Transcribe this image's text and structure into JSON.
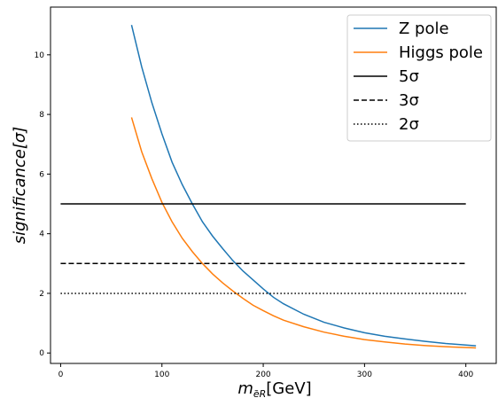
{
  "chart_data": {
    "type": "line",
    "xlabel_base": "m",
    "xlabel_subscript": "ẽR",
    "xlabel_unit": "[GeV]",
    "ylabel": "significance[σ]",
    "xlim": [
      -10,
      430
    ],
    "ylim": [
      -0.35,
      11.6
    ],
    "xticks": [
      0,
      100,
      200,
      300,
      400
    ],
    "yticks": [
      0,
      2,
      4,
      6,
      8,
      10
    ],
    "grid": false,
    "legend_position": "top-right",
    "series": [
      {
        "name": "Z pole",
        "color": "#1f77b4",
        "style": "solid",
        "x": [
          70,
          80,
          90,
          100,
          110,
          120,
          130,
          140,
          150,
          160,
          170,
          180,
          190,
          200,
          210,
          220,
          240,
          260,
          280,
          300,
          320,
          340,
          360,
          380,
          410
        ],
        "y": [
          11.0,
          9.6,
          8.4,
          7.35,
          6.4,
          5.65,
          5.0,
          4.4,
          3.92,
          3.5,
          3.1,
          2.75,
          2.45,
          2.15,
          1.87,
          1.65,
          1.3,
          1.03,
          0.84,
          0.68,
          0.56,
          0.47,
          0.39,
          0.32,
          0.24
        ]
      },
      {
        "name": "Higgs pole",
        "color": "#ff7f0e",
        "style": "solid",
        "x": [
          70,
          80,
          90,
          100,
          110,
          120,
          130,
          140,
          150,
          160,
          170,
          180,
          190,
          200,
          210,
          220,
          240,
          260,
          280,
          300,
          320,
          340,
          360,
          380,
          410
        ],
        "y": [
          7.9,
          6.75,
          5.85,
          5.05,
          4.4,
          3.85,
          3.4,
          3.0,
          2.65,
          2.35,
          2.08,
          1.83,
          1.6,
          1.42,
          1.25,
          1.1,
          0.88,
          0.7,
          0.56,
          0.45,
          0.37,
          0.3,
          0.25,
          0.21,
          0.17
        ]
      },
      {
        "name": "5σ",
        "color": "#000000",
        "style": "solid",
        "x": [
          0,
          400
        ],
        "y": [
          5,
          5
        ]
      },
      {
        "name": "3σ",
        "color": "#000000",
        "style": "dashed",
        "x": [
          0,
          400
        ],
        "y": [
          3,
          3
        ]
      },
      {
        "name": "2σ",
        "color": "#000000",
        "style": "dotted",
        "x": [
          0,
          400
        ],
        "y": [
          2,
          2
        ]
      }
    ]
  }
}
